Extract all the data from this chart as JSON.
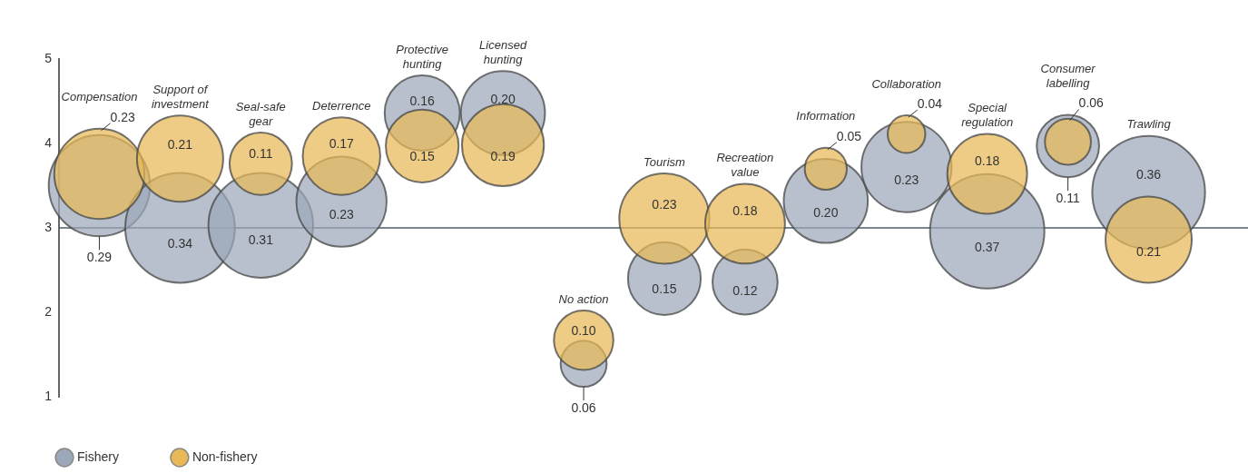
{
  "chart_data": {
    "type": "bubble",
    "categories": [
      "Compensation",
      "Support of investment",
      "Seal-safe gear",
      "Deterrence",
      "Protective hunting",
      "Licensed hunting",
      "No action",
      "Tourism",
      "Recreation value",
      "Information",
      "Collaboration",
      "Special regulation",
      "Consumer labelling",
      "Trawling"
    ],
    "series": [
      {
        "name": "Fishery",
        "color": "#9ba8b8",
        "values": [
          3.5,
          3.0,
          3.03,
          3.31,
          4.36,
          4.36,
          1.39,
          2.4,
          2.36,
          3.32,
          3.72,
          2.96,
          3.97,
          3.42
        ],
        "sizes": [
          0.29,
          0.34,
          0.31,
          0.23,
          0.16,
          0.2,
          0.06,
          0.15,
          0.12,
          0.2,
          0.23,
          0.37,
          0.11,
          0.36
        ],
        "value_labels": [
          "0.29",
          "0.34",
          "0.31",
          "0.23",
          "0.16",
          "0.20",
          "0.06",
          "0.15",
          "0.12",
          "0.20",
          "0.23",
          "0.37",
          "0.11",
          "0.36"
        ]
      },
      {
        "name": "Non-fishery",
        "color": "#e8b956",
        "values": [
          3.64,
          3.82,
          3.76,
          3.85,
          3.97,
          3.98,
          1.67,
          3.11,
          3.05,
          3.7,
          4.11,
          3.64,
          4.02,
          2.86
        ],
        "sizes": [
          0.23,
          0.21,
          0.11,
          0.17,
          0.15,
          0.19,
          0.1,
          0.23,
          0.18,
          0.05,
          0.04,
          0.18,
          0.06,
          0.21
        ],
        "value_labels": [
          "0.23",
          "0.21",
          "0.11",
          "0.17",
          "0.15",
          "0.19",
          "0.10",
          "0.23",
          "0.18",
          "0.05",
          "0.04",
          "0.18",
          "0.06",
          "0.21"
        ]
      }
    ],
    "ylim": [
      1,
      5
    ],
    "yticks": [
      1,
      2,
      3,
      4,
      5
    ],
    "ref_lines": [
      {
        "axis": "y",
        "value": 3,
        "color": "#4d5e6a"
      }
    ],
    "grid": false,
    "legend": "bottom left"
  }
}
